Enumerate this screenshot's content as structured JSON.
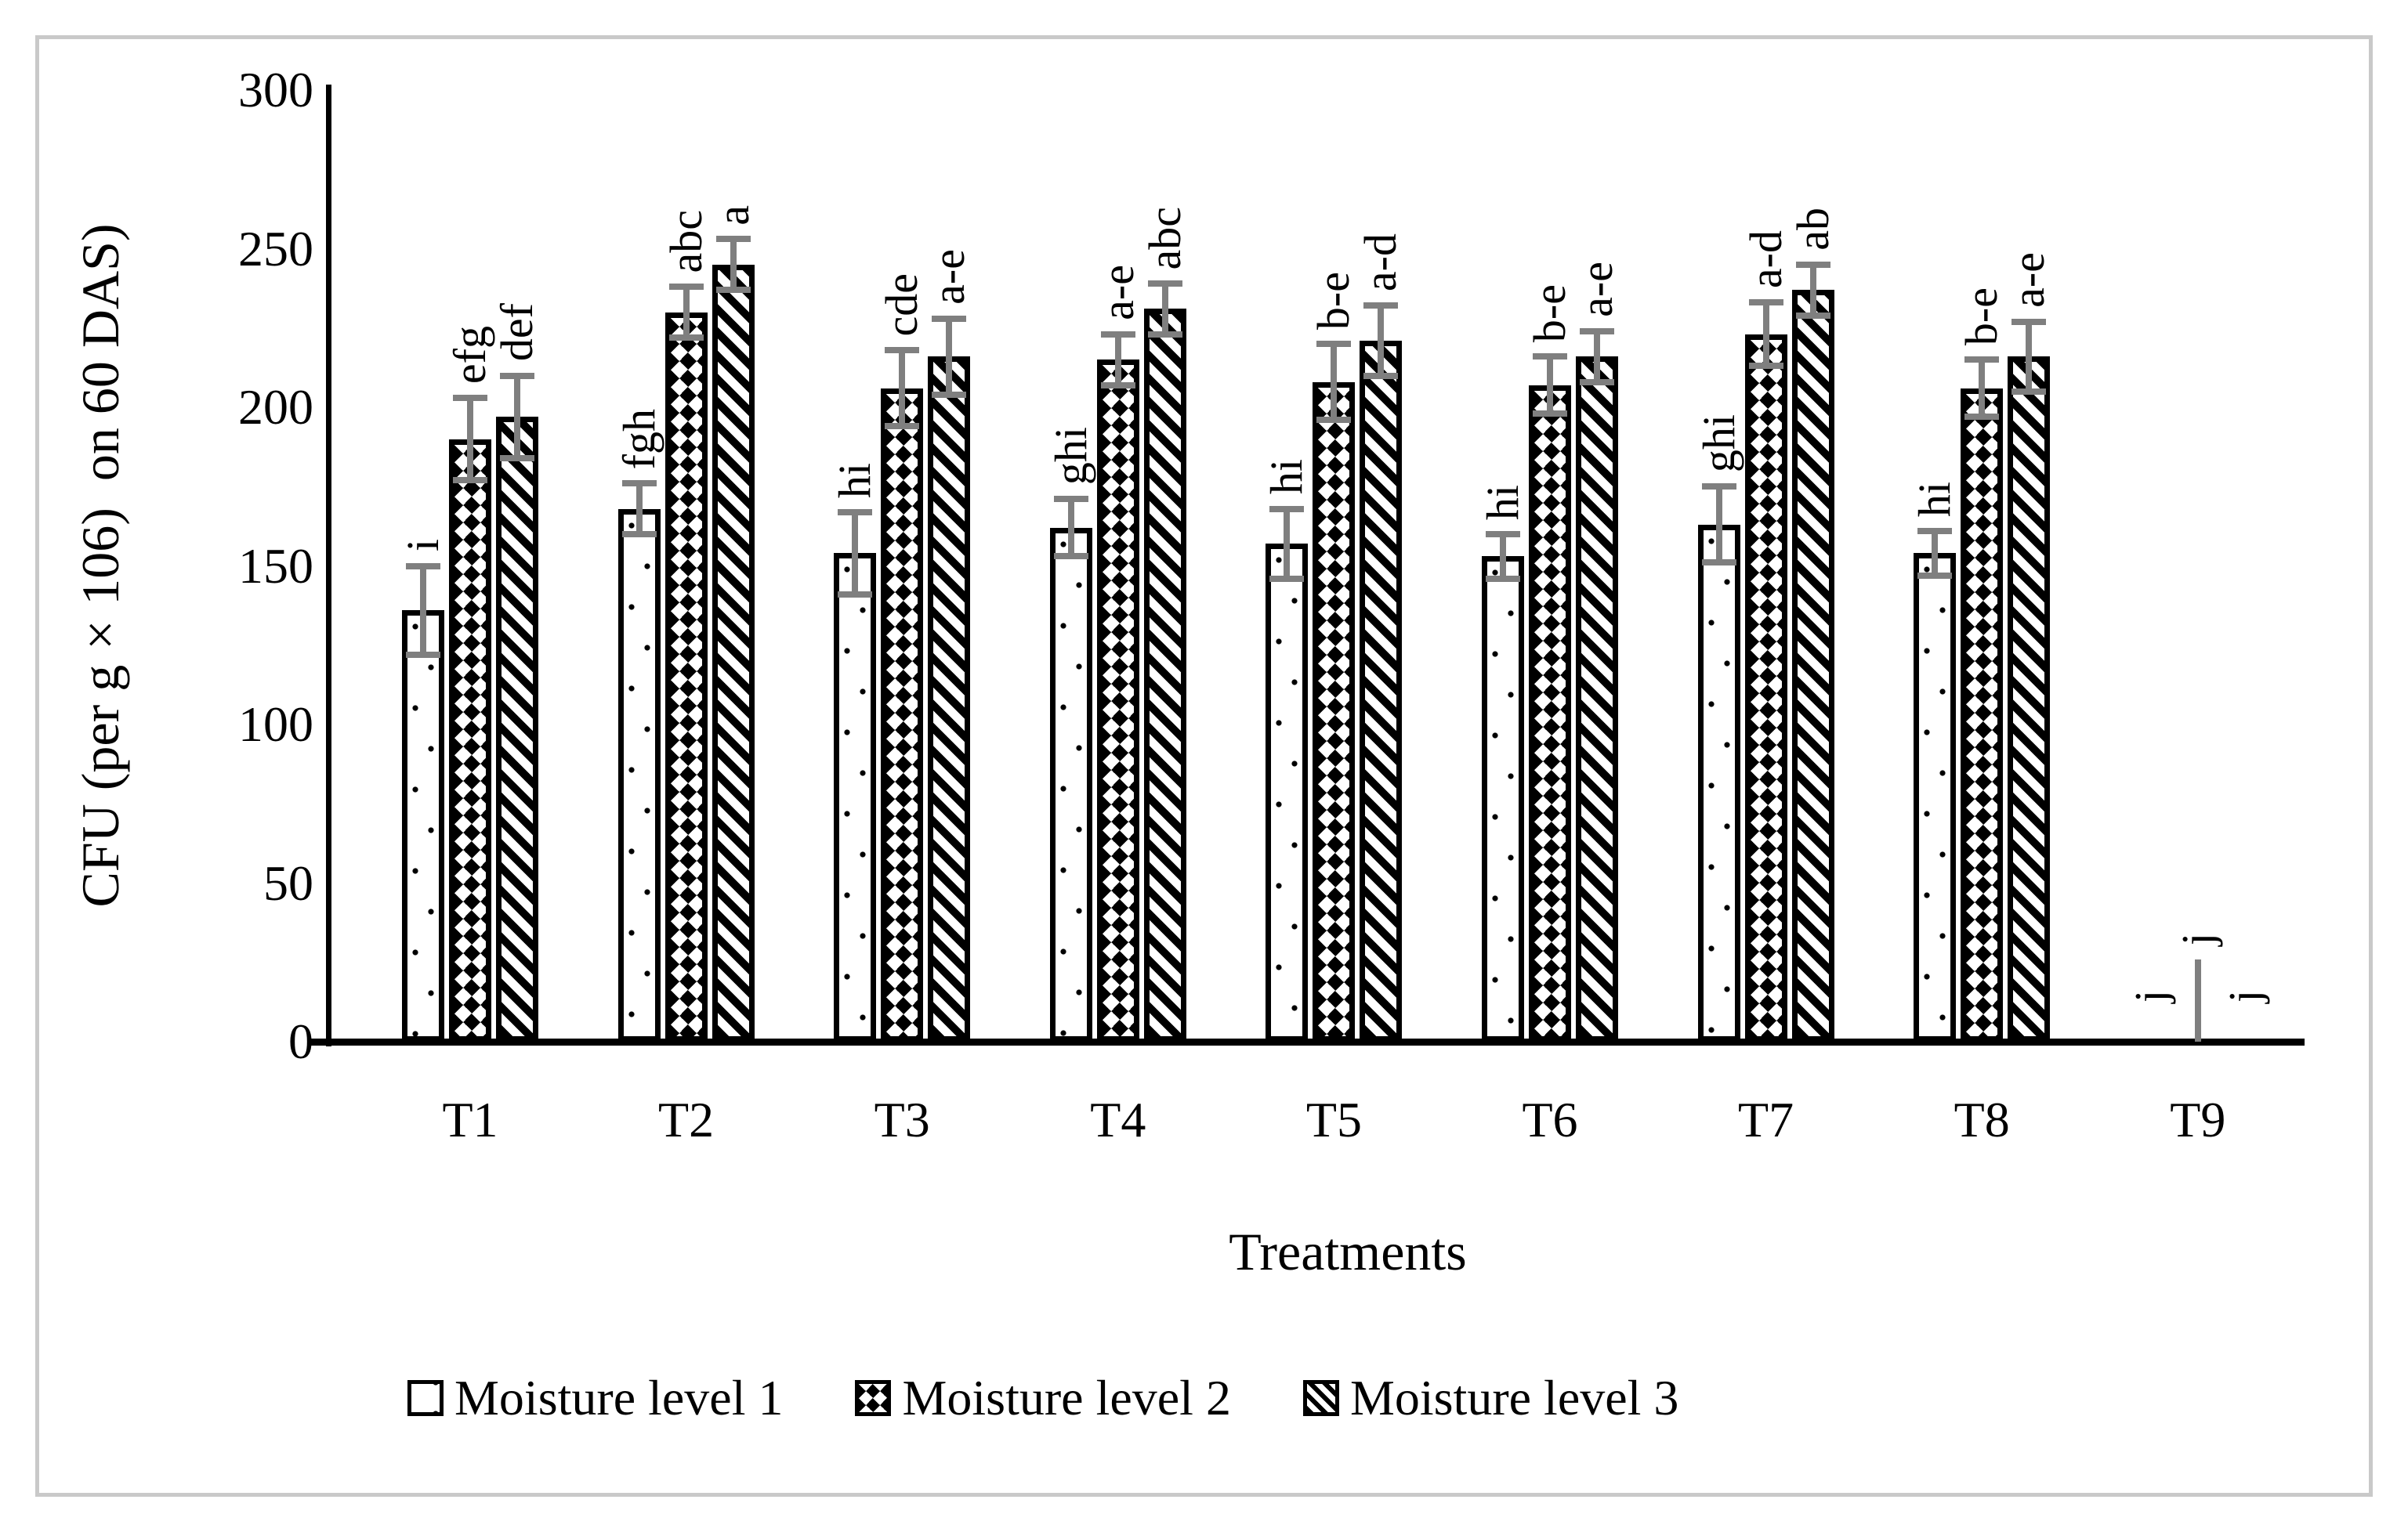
{
  "figure": {
    "background_color": "#ffffff",
    "border_color": "#c9c9c9"
  },
  "chart_data": {
    "type": "bar",
    "title": "",
    "xlabel": "Treatments",
    "ylabel": "CFU (per g×106)  on 60 DAS)",
    "ylim": [
      0,
      300
    ],
    "yticks": [
      0,
      50,
      100,
      150,
      200,
      250,
      300
    ],
    "grid": false,
    "legend_position": "bottom",
    "bar_fill": "#ffffff",
    "bar_stroke": "#000000",
    "error_bar_color": "#7f7f7f",
    "categories": [
      "T1",
      "T2",
      "T3",
      "T4",
      "T5",
      "T6",
      "T7",
      "T8",
      "T9"
    ],
    "series": [
      {
        "name": "Moisture level 1",
        "pattern": "dots",
        "values": [
          136,
          168,
          154,
          162,
          157,
          153,
          163,
          154,
          0
        ],
        "errors": [
          14,
          8,
          13,
          9,
          11,
          7,
          12,
          7,
          0
        ],
        "sig_letters": [
          "i",
          "fgh",
          "hi",
          "ghi",
          "hi",
          "hi",
          "ghi",
          "hi",
          "j"
        ]
      },
      {
        "name": "Moisture level 2",
        "pattern": "checker",
        "values": [
          190,
          230,
          206,
          215,
          208,
          207,
          223,
          206,
          0
        ],
        "errors": [
          13,
          8,
          12,
          8,
          12,
          9,
          10,
          9,
          26
        ],
        "sig_letters": [
          "efg",
          "abc",
          "cde",
          "a-e",
          "b-e",
          "b-e",
          "a-d",
          "b-e",
          "j"
        ]
      },
      {
        "name": "Moisture level 3",
        "pattern": "diagonal",
        "values": [
          197,
          245,
          216,
          231,
          221,
          216,
          237,
          216,
          0
        ],
        "errors": [
          13,
          8,
          12,
          8,
          11,
          8,
          8,
          11,
          0
        ],
        "sig_letters": [
          "def",
          "a",
          "a-e",
          "abc",
          "a-d",
          "a-e",
          "ab",
          "a-e",
          "j"
        ]
      }
    ]
  }
}
